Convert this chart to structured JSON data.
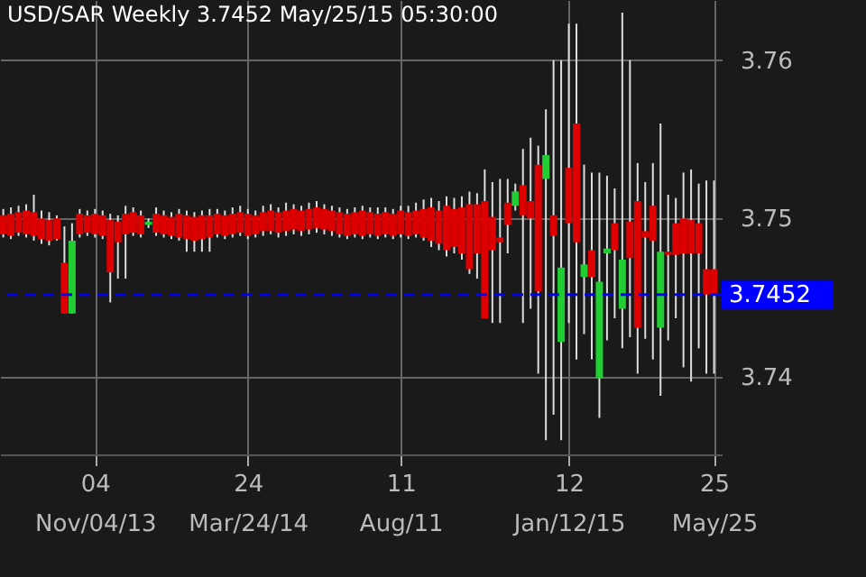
{
  "chart_data": {
    "type": "candlestick",
    "title": "USD/SAR Weekly 3.7452 May/25/15 05:30:00",
    "x": [
      "2013-08-12",
      "2013-08-19",
      "2013-08-26",
      "2013-09-02",
      "2013-09-09",
      "2013-09-16",
      "2013-09-23",
      "2013-09-30",
      "2013-10-07",
      "2013-10-14",
      "2013-10-21",
      "2013-10-28",
      "2013-11-04",
      "2013-11-11",
      "2013-11-18",
      "2013-11-25",
      "2013-12-02",
      "2013-12-09",
      "2013-12-16",
      "2013-12-23",
      "2013-12-30",
      "2014-01-06",
      "2014-01-13",
      "2014-01-20",
      "2014-01-27",
      "2014-02-03",
      "2014-02-10",
      "2014-02-17",
      "2014-02-24",
      "2014-03-03",
      "2014-03-10",
      "2014-03-17",
      "2014-03-24",
      "2014-03-31",
      "2014-04-07",
      "2014-04-14",
      "2014-04-21",
      "2014-04-28",
      "2014-05-05",
      "2014-05-12",
      "2014-05-19",
      "2014-05-26",
      "2014-06-02",
      "2014-06-09",
      "2014-06-16",
      "2014-06-23",
      "2014-06-30",
      "2014-07-07",
      "2014-07-14",
      "2014-07-21",
      "2014-07-28",
      "2014-08-04",
      "2014-08-11",
      "2014-08-18",
      "2014-08-25",
      "2014-09-01",
      "2014-09-08",
      "2014-09-15",
      "2014-09-22",
      "2014-09-29",
      "2014-10-06",
      "2014-10-13",
      "2014-10-20",
      "2014-10-27",
      "2014-11-03",
      "2014-11-10",
      "2014-11-17",
      "2014-11-24",
      "2014-12-01",
      "2014-12-08",
      "2014-12-15",
      "2014-12-22",
      "2014-12-29",
      "2015-01-05",
      "2015-01-12",
      "2015-01-19",
      "2015-01-26",
      "2015-02-02",
      "2015-02-09",
      "2015-02-16",
      "2015-02-23",
      "2015-03-02",
      "2015-03-09",
      "2015-03-16",
      "2015-03-23",
      "2015-03-30",
      "2015-04-06",
      "2015-04-13",
      "2015-04-20",
      "2015-04-27",
      "2015-05-04",
      "2015-05-11",
      "2015-05-18",
      "2015-05-25"
    ],
    "ohlc": [
      [
        3.7502,
        3.7506,
        3.7488,
        3.749
      ],
      [
        3.7503,
        3.7507,
        3.7487,
        3.7489
      ],
      [
        3.7504,
        3.7508,
        3.7489,
        3.7491
      ],
      [
        3.7505,
        3.7509,
        3.7488,
        3.749
      ],
      [
        3.7504,
        3.7515,
        3.7486,
        3.7489
      ],
      [
        3.75,
        3.7505,
        3.7484,
        3.7487
      ],
      [
        3.7499,
        3.7504,
        3.7483,
        3.7486
      ],
      [
        3.75,
        3.7502,
        3.7486,
        3.7487
      ],
      [
        3.7472,
        3.7495,
        3.744,
        3.744
      ],
      [
        3.744,
        3.7497,
        3.744,
        3.7486
      ],
      [
        3.7503,
        3.7506,
        3.7488,
        3.749
      ],
      [
        3.7502,
        3.7505,
        3.7489,
        3.7491
      ],
      [
        3.7503,
        3.7506,
        3.7488,
        3.749
      ],
      [
        3.7502,
        3.7505,
        3.7487,
        3.7489
      ],
      [
        3.7499,
        3.7503,
        3.7447,
        3.7466
      ],
      [
        3.7498,
        3.7502,
        3.7462,
        3.7485
      ],
      [
        3.7503,
        3.7508,
        3.7462,
        3.749
      ],
      [
        3.7504,
        3.7507,
        3.7489,
        3.7491
      ],
      [
        3.7502,
        3.7505,
        3.7488,
        3.749
      ],
      [
        3.7496,
        3.75,
        3.7494,
        3.7498
      ],
      [
        3.7503,
        3.7507,
        3.7489,
        3.7491
      ],
      [
        3.7502,
        3.7505,
        3.7488,
        3.749
      ],
      [
        3.7501,
        3.7504,
        3.7487,
        3.7489
      ],
      [
        3.7503,
        3.7506,
        3.7486,
        3.7488
      ],
      [
        3.7502,
        3.7505,
        3.7479,
        3.7487
      ],
      [
        3.7501,
        3.7504,
        3.7479,
        3.7486
      ],
      [
        3.7502,
        3.7505,
        3.7479,
        3.7487
      ],
      [
        3.7502,
        3.7506,
        3.7479,
        3.7488
      ],
      [
        3.7503,
        3.7506,
        3.7488,
        3.749
      ],
      [
        3.7502,
        3.7505,
        3.7487,
        3.7489
      ],
      [
        3.7503,
        3.7507,
        3.7488,
        3.749
      ],
      [
        3.7504,
        3.7508,
        3.7489,
        3.7491
      ],
      [
        3.7503,
        3.7506,
        3.7487,
        3.7489
      ],
      [
        3.7502,
        3.7505,
        3.7488,
        3.749
      ],
      [
        3.7504,
        3.7508,
        3.7489,
        3.7492
      ],
      [
        3.7505,
        3.7509,
        3.749,
        3.7492
      ],
      [
        3.7504,
        3.7507,
        3.7488,
        3.7491
      ],
      [
        3.7505,
        3.751,
        3.7489,
        3.7492
      ],
      [
        3.7506,
        3.7509,
        3.749,
        3.7493
      ],
      [
        3.7505,
        3.7508,
        3.7489,
        3.7492
      ],
      [
        3.7506,
        3.751,
        3.749,
        3.7493
      ],
      [
        3.7507,
        3.7511,
        3.7491,
        3.7494
      ],
      [
        3.7506,
        3.7509,
        3.749,
        3.7493
      ],
      [
        3.7505,
        3.7508,
        3.7489,
        3.7492
      ],
      [
        3.7504,
        3.7507,
        3.7488,
        3.749
      ],
      [
        3.7503,
        3.7506,
        3.7487,
        3.7489
      ],
      [
        3.7504,
        3.7507,
        3.7488,
        3.749
      ],
      [
        3.7505,
        3.7508,
        3.7487,
        3.7489
      ],
      [
        3.7504,
        3.7507,
        3.7488,
        3.749
      ],
      [
        3.7503,
        3.7507,
        3.7487,
        3.7489
      ],
      [
        3.7504,
        3.7507,
        3.7488,
        3.749
      ],
      [
        3.7503,
        3.7506,
        3.7487,
        3.7489
      ],
      [
        3.7505,
        3.7508,
        3.7488,
        3.749
      ],
      [
        3.7504,
        3.7508,
        3.7487,
        3.7489
      ],
      [
        3.7505,
        3.751,
        3.7488,
        3.749
      ],
      [
        3.7506,
        3.7512,
        3.7486,
        3.7488
      ],
      [
        3.7507,
        3.7513,
        3.7482,
        3.7486
      ],
      [
        3.7505,
        3.7511,
        3.748,
        3.7484
      ],
      [
        3.7508,
        3.7514,
        3.7476,
        3.748
      ],
      [
        3.7506,
        3.7513,
        3.7478,
        3.7482
      ],
      [
        3.7507,
        3.7514,
        3.7474,
        3.7478
      ],
      [
        3.7509,
        3.7517,
        3.7465,
        3.7468
      ],
      [
        3.7509,
        3.7516,
        3.7462,
        3.7478
      ],
      [
        3.7511,
        3.7531,
        3.7437,
        3.7437
      ],
      [
        3.7501,
        3.7523,
        3.7434,
        3.748
      ],
      [
        3.7488,
        3.7525,
        3.7434,
        3.7485
      ],
      [
        3.751,
        3.7525,
        3.7478,
        3.7496
      ],
      [
        3.7508,
        3.7522,
        3.7505,
        3.7517
      ],
      [
        3.7521,
        3.7544,
        3.7434,
        3.7502
      ],
      [
        3.7511,
        3.7551,
        3.7443,
        3.75
      ],
      [
        3.7534,
        3.7546,
        3.7402,
        3.7454
      ],
      [
        3.7525,
        3.7569,
        3.736,
        3.754
      ],
      [
        3.7502,
        3.76,
        3.7376,
        3.7489
      ],
      [
        3.7422,
        3.76,
        3.736,
        3.7469
      ],
      [
        3.7532,
        3.7623,
        3.7434,
        3.7497
      ],
      [
        3.756,
        3.7623,
        3.7411,
        3.7485
      ],
      [
        3.7463,
        3.7534,
        3.7427,
        3.7471
      ],
      [
        3.748,
        3.7529,
        3.7411,
        3.7463
      ],
      [
        3.7399,
        3.7529,
        3.7374,
        3.746
      ],
      [
        3.7478,
        3.7527,
        3.7423,
        3.7481
      ],
      [
        3.7497,
        3.7519,
        3.7437,
        3.748
      ],
      [
        3.7443,
        3.763,
        3.7418,
        3.7474
      ],
      [
        3.7498,
        3.76,
        3.7425,
        3.7475
      ],
      [
        3.7511,
        3.7535,
        3.7402,
        3.7431
      ],
      [
        3.7492,
        3.7523,
        3.7424,
        3.7488
      ],
      [
        3.7508,
        3.7535,
        3.7411,
        3.7486
      ],
      [
        3.7431,
        3.756,
        3.7388,
        3.7479
      ],
      [
        3.7479,
        3.7515,
        3.7423,
        3.7477
      ],
      [
        3.7497,
        3.7513,
        3.7437,
        3.7477
      ],
      [
        3.75,
        3.7529,
        3.7406,
        3.7478
      ],
      [
        3.7499,
        3.7531,
        3.7397,
        3.7478
      ],
      [
        3.7497,
        3.7522,
        3.7418,
        3.7478
      ],
      [
        3.7468,
        3.7524,
        3.7402,
        3.7452
      ],
      [
        3.7468,
        3.7524,
        3.7402,
        3.7452
      ]
    ],
    "xlim": [
      "2013-08-09",
      "2015-06-01"
    ],
    "xticks": [
      {
        "value": "2013-11-04",
        "label": "04\nNov/04/13"
      },
      {
        "value": "2014-03-24",
        "label": "24\nMar/24/14"
      },
      {
        "value": "2014-08-11",
        "label": "11\nAug/11"
      },
      {
        "value": "2015-01-12",
        "label": "12\nJan/12/15"
      },
      {
        "value": "2015-05-25",
        "label": "25\nMay/25"
      }
    ],
    "ylim": [
      3.7351,
      3.7638
    ],
    "yticks": [
      3.74,
      3.75,
      3.76
    ],
    "grid": true,
    "ref_lines": [
      {
        "axis": "y",
        "value": 3.7452,
        "label": "3.7452",
        "color": "#0000ff",
        "line_style": "dashed"
      }
    ]
  }
}
